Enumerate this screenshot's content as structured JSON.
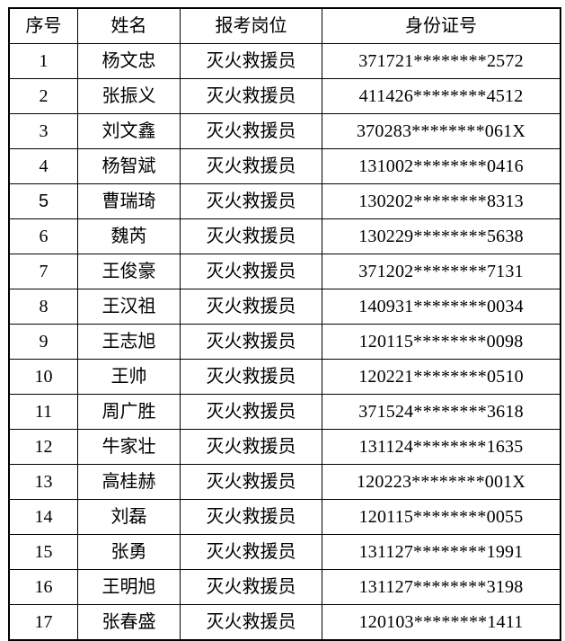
{
  "page": {
    "background_color": "#ffffff",
    "border_color": "#000000",
    "text_color": "#000000"
  },
  "table": {
    "headers": [
      "序号",
      "姓名",
      "报考岗位",
      "身份证号"
    ],
    "rows": [
      {
        "seq": "1",
        "name": "杨文忠",
        "position": "灭火救援员",
        "id_number": "371721********2572"
      },
      {
        "seq": "2",
        "name": "张振义",
        "position": "灭火救援员",
        "id_number": "411426********4512"
      },
      {
        "seq": "3",
        "name": "刘文鑫",
        "position": "灭火救援员",
        "id_number": "370283********061X"
      },
      {
        "seq": "4",
        "name": "杨智斌",
        "position": "灭火救援员",
        "id_number": "131002********0416"
      },
      {
        "seq": "5",
        "name": "曹瑞琦",
        "position": "灭火救援员",
        "id_number": "130202********8313",
        "seq_variant": true
      },
      {
        "seq": "6",
        "name": "魏芮",
        "position": "灭火救援员",
        "id_number": "130229********5638"
      },
      {
        "seq": "7",
        "name": "王俊豪",
        "position": "灭火救援员",
        "id_number": "371202********7131"
      },
      {
        "seq": "8",
        "name": "王汉祖",
        "position": "灭火救援员",
        "id_number": "140931********0034"
      },
      {
        "seq": "9",
        "name": "王志旭",
        "position": "灭火救援员",
        "id_number": "120115********0098"
      },
      {
        "seq": "10",
        "name": "王帅",
        "position": "灭火救援员",
        "id_number": "120221********0510"
      },
      {
        "seq": "11",
        "name": "周广胜",
        "position": "灭火救援员",
        "id_number": "371524********3618"
      },
      {
        "seq": "12",
        "name": "牛家壮",
        "position": "灭火救援员",
        "id_number": "131124********1635"
      },
      {
        "seq": "13",
        "name": "高桂赫",
        "position": "灭火救援员",
        "id_number": "120223********001X"
      },
      {
        "seq": "14",
        "name": "刘磊",
        "position": "灭火救援员",
        "id_number": "120115********0055"
      },
      {
        "seq": "15",
        "name": "张勇",
        "position": "灭火救援员",
        "id_number": "131127********1991"
      },
      {
        "seq": "16",
        "name": "王明旭",
        "position": "灭火救援员",
        "id_number": "131127********3198"
      },
      {
        "seq": "17",
        "name": "张春盛",
        "position": "灭火救援员",
        "id_number": "120103********1411"
      }
    ]
  }
}
